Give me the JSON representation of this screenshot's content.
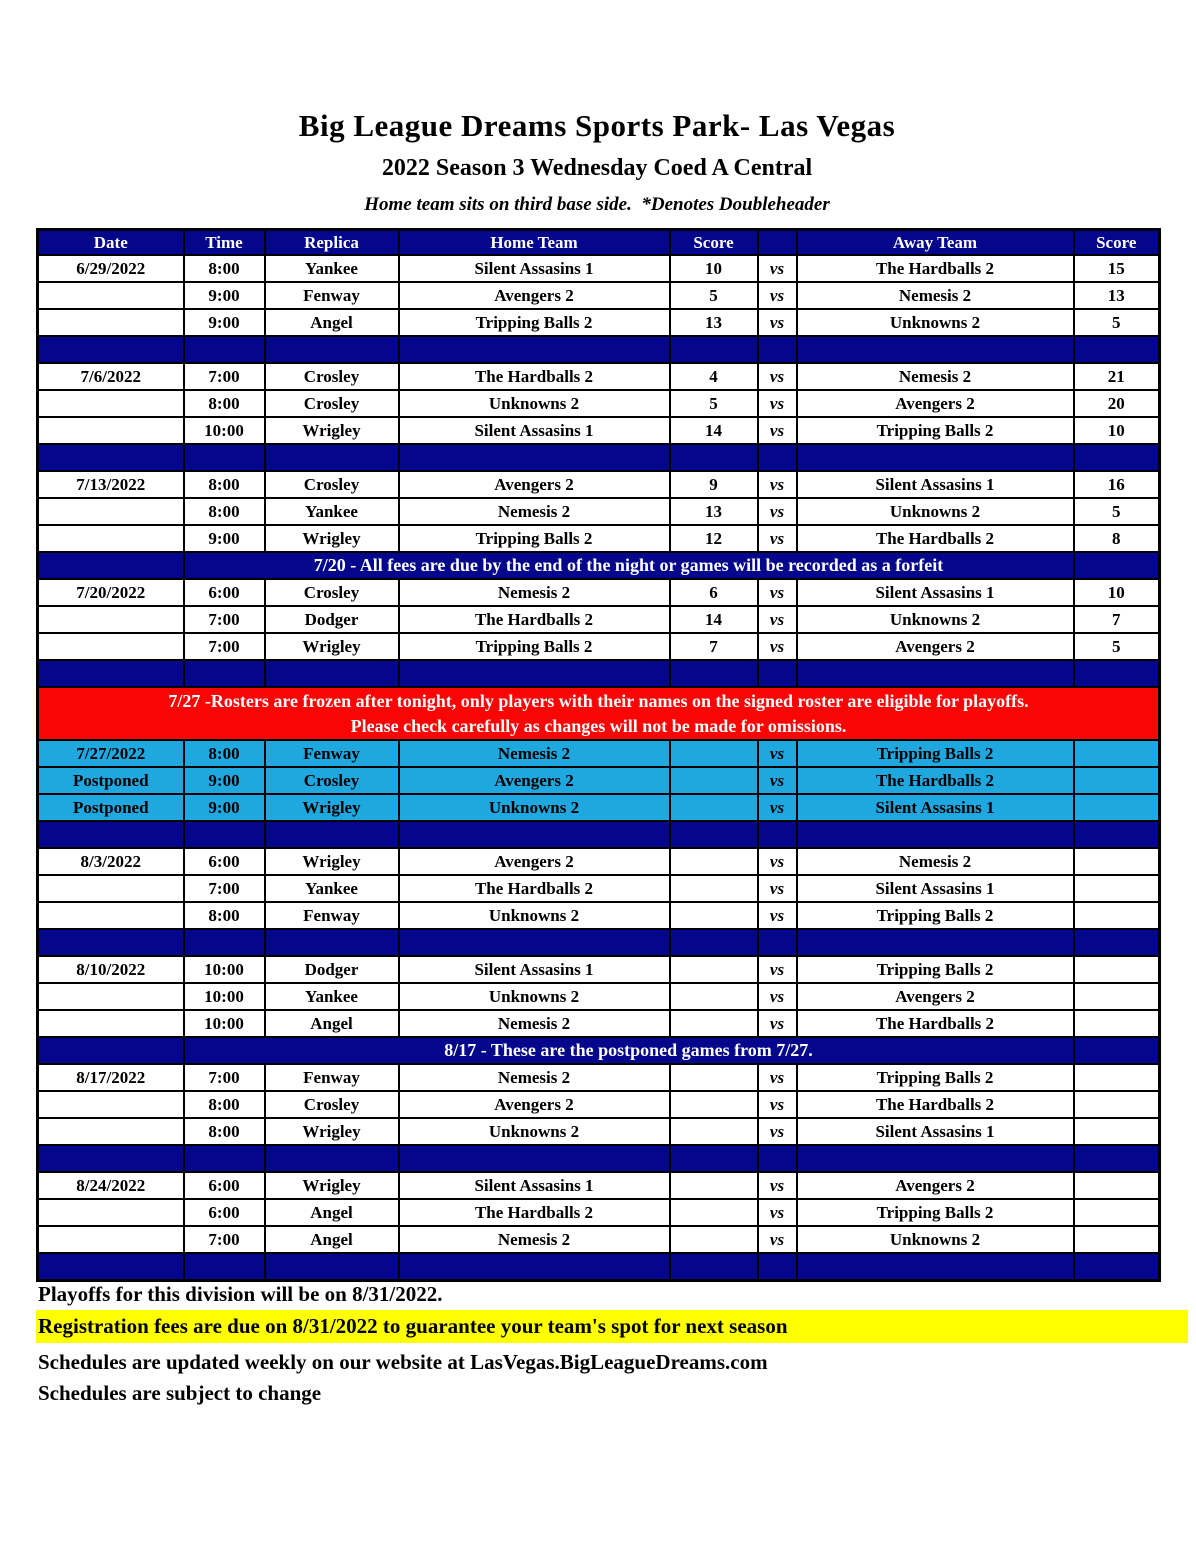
{
  "header": {
    "title": "Big League Dreams Sports Park- Las Vegas",
    "subtitle": "2022 Season 3 Wednesday Coed A Central",
    "note": "Home team sits on third base side.  *Denotes Doubleheader"
  },
  "colors": {
    "navy": "#04068C",
    "yellow": "#FFFF00",
    "cyan": "#1FA7E0",
    "red": "#F90505"
  },
  "table": {
    "headers": [
      "Date",
      "Time",
      "Replica",
      "Home Team",
      "Score",
      "",
      "Away Team",
      "Score"
    ],
    "vs_label": "vs",
    "rows": [
      {
        "type": "game",
        "date": "6/29/2022",
        "time": "8:00",
        "replica": "Yankee",
        "home": "Silent Assasins 1",
        "home_score": "10",
        "away": "The Hardballs 2",
        "away_score": "15",
        "winner": "away"
      },
      {
        "type": "game",
        "date": "",
        "time": "9:00",
        "replica": "Fenway",
        "home": "Avengers 2",
        "home_score": "5",
        "away": "Nemesis 2",
        "away_score": "13",
        "winner": "away"
      },
      {
        "type": "game",
        "date": "",
        "time": "9:00",
        "replica": "Angel",
        "home": "Tripping Balls 2",
        "home_score": "13",
        "away": "Unknowns 2",
        "away_score": "5",
        "winner": "home"
      },
      {
        "type": "spacer"
      },
      {
        "type": "game",
        "date": "7/6/2022",
        "time": "7:00",
        "replica": "Crosley",
        "home": "The Hardballs 2",
        "home_score": "4",
        "away": "Nemesis 2",
        "away_score": "21",
        "winner": "away"
      },
      {
        "type": "game",
        "date": "",
        "time": "8:00",
        "replica": "Crosley",
        "home": "Unknowns 2",
        "home_score": "5",
        "away": "Avengers 2",
        "away_score": "20",
        "winner": "away"
      },
      {
        "type": "game",
        "date": "",
        "time": "10:00",
        "replica": "Wrigley",
        "home": "Silent Assasins 1",
        "home_score": "14",
        "away": "Tripping Balls 2",
        "away_score": "10",
        "winner": "home"
      },
      {
        "type": "spacer"
      },
      {
        "type": "game",
        "date": "7/13/2022",
        "time": "8:00",
        "replica": "Crosley",
        "home": "Avengers 2",
        "home_score": "9",
        "away": "Silent Assasins 1",
        "away_score": "16",
        "winner": "away"
      },
      {
        "type": "game",
        "date": "",
        "time": "8:00",
        "replica": "Yankee",
        "home": "Nemesis 2",
        "home_score": "13",
        "away": "Unknowns 2",
        "away_score": "5",
        "winner": "home"
      },
      {
        "type": "game",
        "date": "",
        "time": "9:00",
        "replica": "Wrigley",
        "home": "Tripping Balls 2",
        "home_score": "12",
        "away": "The Hardballs 2",
        "away_score": "8",
        "winner": "home"
      },
      {
        "type": "notice",
        "text": "7/20 - All fees are due by the end of the night or games will be recorded as a forfeit"
      },
      {
        "type": "game",
        "date": "7/20/2022",
        "time": "6:00",
        "replica": "Crosley",
        "home": "Nemesis 2",
        "home_score": "6",
        "away": "Silent Assasins 1",
        "away_score": "10",
        "winner": "away"
      },
      {
        "type": "game",
        "date": "",
        "time": "7:00",
        "replica": "Dodger",
        "home": "The Hardballs 2",
        "home_score": "14",
        "away": "Unknowns 2",
        "away_score": "7",
        "winner": "home"
      },
      {
        "type": "game",
        "date": "",
        "time": "7:00",
        "replica": "Wrigley",
        "home": "Tripping Balls 2",
        "home_score": "7",
        "away": "Avengers 2",
        "away_score": "5",
        "winner": "home"
      },
      {
        "type": "spacer"
      },
      {
        "type": "red_notice",
        "lines": [
          "7/27 -Rosters are frozen after tonight, only players with their names on the signed roster are eligible for playoffs.",
          "Please check carefully as changes will not be made for omissions."
        ]
      },
      {
        "type": "game",
        "postponed": true,
        "date": "7/27/2022",
        "time": "8:00",
        "replica": "Fenway",
        "home": "Nemesis 2",
        "home_score": "",
        "away": "Tripping Balls 2",
        "away_score": "",
        "winner": null
      },
      {
        "type": "game",
        "postponed": true,
        "date": "Postponed",
        "time": "9:00",
        "replica": "Crosley",
        "home": "Avengers 2",
        "home_score": "",
        "away": "The Hardballs 2",
        "away_score": "",
        "winner": null
      },
      {
        "type": "game",
        "postponed": true,
        "date": "Postponed",
        "time": "9:00",
        "replica": "Wrigley",
        "home": "Unknowns 2",
        "home_score": "",
        "away": "Silent Assasins 1",
        "away_score": "",
        "winner": null
      },
      {
        "type": "spacer"
      },
      {
        "type": "game",
        "date": "8/3/2022",
        "time": "6:00",
        "replica": "Wrigley",
        "home": "Avengers 2",
        "home_score": "",
        "away": "Nemesis 2",
        "away_score": "",
        "winner": null
      },
      {
        "type": "game",
        "date": "",
        "time": "7:00",
        "replica": "Yankee",
        "home": "The Hardballs 2",
        "home_score": "",
        "away": "Silent Assasins 1",
        "away_score": "",
        "winner": null
      },
      {
        "type": "game",
        "date": "",
        "time": "8:00",
        "replica": "Fenway",
        "home": "Unknowns 2",
        "home_score": "",
        "away": "Tripping Balls 2",
        "away_score": "",
        "winner": null
      },
      {
        "type": "spacer"
      },
      {
        "type": "game",
        "date": "8/10/2022",
        "time": "10:00",
        "replica": "Dodger",
        "home": "Silent Assasins 1",
        "home_score": "",
        "away": "Tripping Balls 2",
        "away_score": "",
        "winner": null
      },
      {
        "type": "game",
        "date": "",
        "time": "10:00",
        "replica": "Yankee",
        "home": "Unknowns 2",
        "home_score": "",
        "away": "Avengers 2",
        "away_score": "",
        "winner": null
      },
      {
        "type": "game",
        "date": "",
        "time": "10:00",
        "replica": "Angel",
        "home": "Nemesis 2",
        "home_score": "",
        "away": "The Hardballs 2",
        "away_score": "",
        "winner": null
      },
      {
        "type": "notice",
        "text": "8/17 - These are the postponed games from 7/27."
      },
      {
        "type": "game",
        "date": "8/17/2022",
        "time": "7:00",
        "replica": "Fenway",
        "home": "Nemesis 2",
        "home_score": "",
        "away": "Tripping Balls 2",
        "away_score": "",
        "winner": null
      },
      {
        "type": "game",
        "date": "",
        "time": "8:00",
        "replica": "Crosley",
        "home": "Avengers 2",
        "home_score": "",
        "away": "The Hardballs 2",
        "away_score": "",
        "winner": null
      },
      {
        "type": "game",
        "date": "",
        "time": "8:00",
        "replica": "Wrigley",
        "home": "Unknowns 2",
        "home_score": "",
        "away": "Silent Assasins 1",
        "away_score": "",
        "winner": null
      },
      {
        "type": "spacer"
      },
      {
        "type": "game",
        "date": "8/24/2022",
        "time": "6:00",
        "replica": "Wrigley",
        "home": "Silent Assasins 1",
        "home_score": "",
        "away": "Avengers 2",
        "away_score": "",
        "winner": null
      },
      {
        "type": "game",
        "date": "",
        "time": "6:00",
        "replica": "Angel",
        "home": "The Hardballs 2",
        "home_score": "",
        "away": "Tripping Balls 2",
        "away_score": "",
        "winner": null
      },
      {
        "type": "game",
        "date": "",
        "time": "7:00",
        "replica": "Angel",
        "home": "Nemesis 2",
        "home_score": "",
        "away": "Unknowns 2",
        "away_score": "",
        "winner": null
      },
      {
        "type": "spacer"
      }
    ]
  },
  "footer": {
    "lines": [
      "Playoffs for this division will be on 8/31/2022.",
      "Registration fees are due on 8/31/2022 to guarantee your team's spot for next season",
      "Schedules are updated weekly on our website at LasVegas.BigLeagueDreams.com",
      "Schedules are subject to change"
    ]
  }
}
